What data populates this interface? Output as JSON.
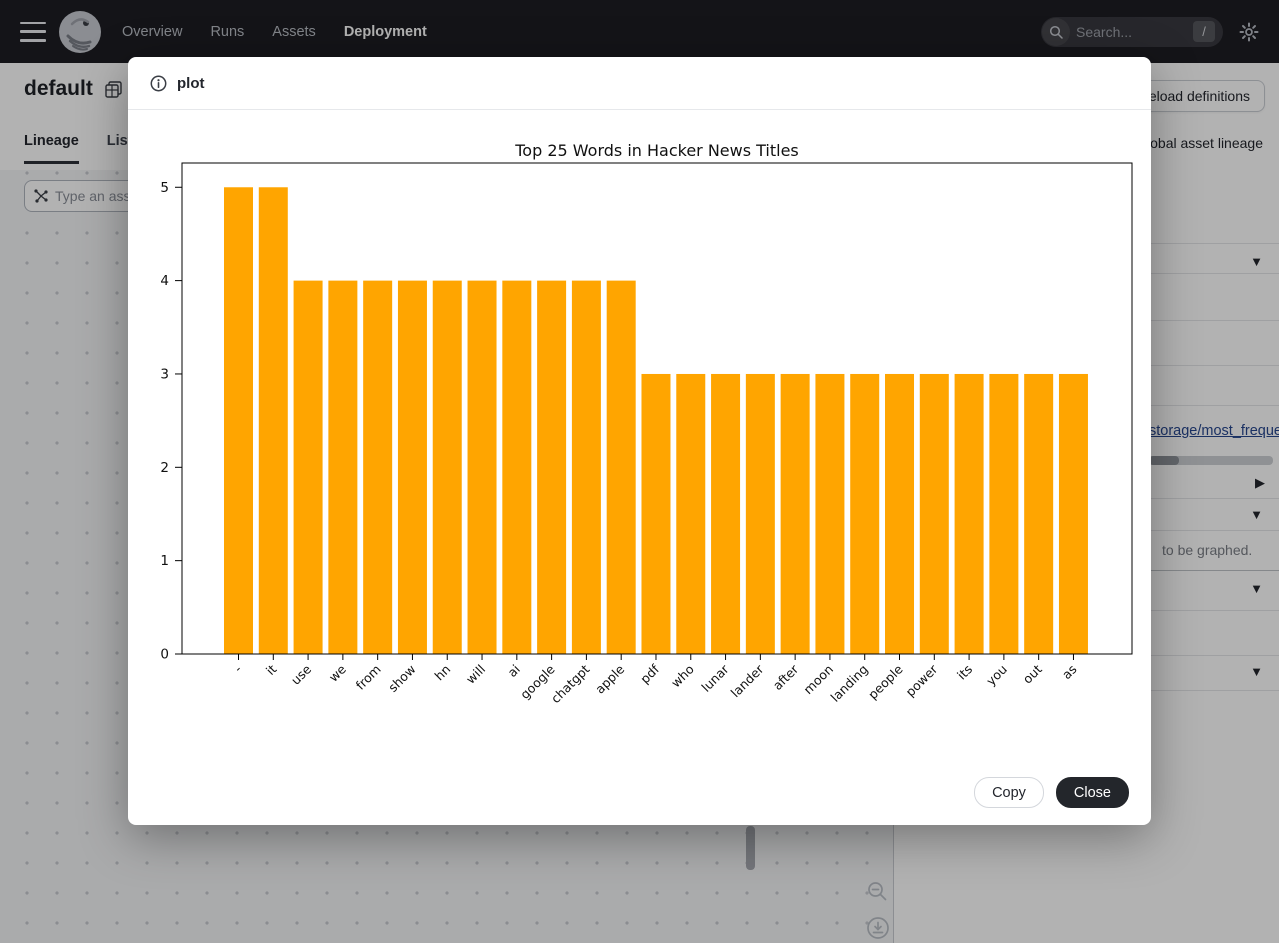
{
  "nav": {
    "items": [
      {
        "label": "Overview"
      },
      {
        "label": "Runs"
      },
      {
        "label": "Assets"
      },
      {
        "label": "Deployment"
      }
    ],
    "active_item": "Deployment",
    "search": {
      "placeholder": "Search...",
      "shortcut": "/"
    }
  },
  "page": {
    "title": "default",
    "assets_label": "Assets",
    "tabs": [
      "Lineage",
      "List"
    ],
    "active_tab": "Lineage",
    "reload_label": "Reload definitions",
    "lineage_link": "Global asset lineage",
    "asset_input_placeholder": "Type an asset subset…"
  },
  "sidebar": {
    "link_text": "storage/most_frequent_words",
    "hint_text": "to be graphed."
  },
  "modal": {
    "title": "plot",
    "copy_label": "Copy",
    "close_label": "Close"
  },
  "icons": {
    "dropdown": "▼",
    "expand": "▶"
  },
  "colors": {
    "bar": "#FFA500",
    "overlay_dim": "rgba(0,0,0,0.30)"
  },
  "chart_data": {
    "type": "bar",
    "title": "Top 25 Words in Hacker News Titles",
    "categories": [
      "-",
      "it",
      "use",
      "we",
      "from",
      "show",
      "hn",
      "will",
      "ai",
      "google",
      "chatgpt",
      "apple",
      "pdf",
      "who",
      "lunar",
      "lander",
      "after",
      "moon",
      "landing",
      "people",
      "power",
      "its",
      "you",
      "out",
      "as"
    ],
    "values": [
      5,
      5,
      4,
      4,
      4,
      4,
      4,
      4,
      4,
      4,
      4,
      4,
      3,
      3,
      3,
      3,
      3,
      3,
      3,
      3,
      3,
      3,
      3,
      3,
      3
    ],
    "xlabel": "",
    "ylabel": "",
    "ylim": [
      0,
      5.26
    ],
    "yticks": [
      0,
      1,
      2,
      3,
      4,
      5
    ],
    "grid": false,
    "legend": false,
    "bar_color": "#FFA500",
    "tick_label_rotation": 45
  }
}
